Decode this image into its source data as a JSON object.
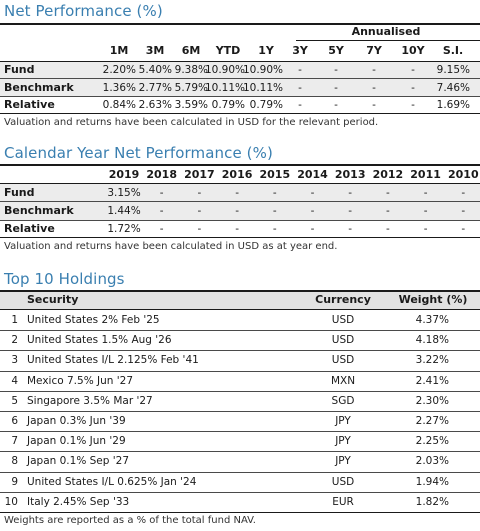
{
  "net_performance": {
    "title": "Net Performance (%)",
    "annualised_label": "Annualised",
    "columns": [
      "1M",
      "3M",
      "6M",
      "YTD",
      "1Y",
      "3Y",
      "5Y",
      "7Y",
      "10Y",
      "S.I."
    ],
    "rows": [
      {
        "label": "Fund",
        "values": [
          "2.20%",
          "5.40%",
          "9.38%",
          "10.90%",
          "10.90%",
          "-",
          "-",
          "-",
          "-",
          "9.15%"
        ]
      },
      {
        "label": "Benchmark",
        "values": [
          "1.36%",
          "2.77%",
          "5.79%",
          "10.11%",
          "10.11%",
          "-",
          "-",
          "-",
          "-",
          "7.46%"
        ]
      },
      {
        "label": "Relative",
        "values": [
          "0.84%",
          "2.63%",
          "3.59%",
          "0.79%",
          "0.79%",
          "-",
          "-",
          "-",
          "-",
          "1.69%"
        ]
      }
    ],
    "note": "Valuation and returns have been calculated in USD for the relevant period."
  },
  "calendar_performance": {
    "title": "Calendar Year Net Performance (%)",
    "columns": [
      "2019",
      "2018",
      "2017",
      "2016",
      "2015",
      "2014",
      "2013",
      "2012",
      "2011",
      "2010"
    ],
    "rows": [
      {
        "label": "Fund",
        "values": [
          "3.15%",
          "-",
          "-",
          "-",
          "-",
          "-",
          "-",
          "-",
          "-",
          "-"
        ]
      },
      {
        "label": "Benchmark",
        "values": [
          "1.44%",
          "-",
          "-",
          "-",
          "-",
          "-",
          "-",
          "-",
          "-",
          "-"
        ]
      },
      {
        "label": "Relative",
        "values": [
          "1.72%",
          "-",
          "-",
          "-",
          "-",
          "-",
          "-",
          "-",
          "-",
          "-"
        ]
      }
    ],
    "note": "Valuation and returns have been calculated in USD as at year end."
  },
  "top_holdings": {
    "title": "Top 10 Holdings",
    "headers": {
      "security": "Security",
      "currency": "Currency",
      "weight": "Weight (%)"
    },
    "rows": [
      {
        "rank": "1",
        "security": "United States 2% Feb '25",
        "currency": "USD",
        "weight": "4.37%"
      },
      {
        "rank": "2",
        "security": "United States 1.5% Aug '26",
        "currency": "USD",
        "weight": "4.18%"
      },
      {
        "rank": "3",
        "security": "United States I/L 2.125% Feb '41",
        "currency": "USD",
        "weight": "3.22%"
      },
      {
        "rank": "4",
        "security": "Mexico 7.5% Jun '27",
        "currency": "MXN",
        "weight": "2.41%"
      },
      {
        "rank": "5",
        "security": "Singapore 3.5% Mar '27",
        "currency": "SGD",
        "weight": "2.30%"
      },
      {
        "rank": "6",
        "security": "Japan 0.3% Jun '39",
        "currency": "JPY",
        "weight": "2.27%"
      },
      {
        "rank": "7",
        "security": "Japan 0.1% Jun '29",
        "currency": "JPY",
        "weight": "2.25%"
      },
      {
        "rank": "8",
        "security": "Japan 0.1% Sep '27",
        "currency": "JPY",
        "weight": "2.03%"
      },
      {
        "rank": "9",
        "security": "United States I/L 0.625% Jan '24",
        "currency": "USD",
        "weight": "1.94%"
      },
      {
        "rank": "10",
        "security": "Italy 2.45% Sep '33",
        "currency": "EUR",
        "weight": "1.82%"
      }
    ],
    "note": "Weights are reported as a % of the total fund NAV."
  }
}
